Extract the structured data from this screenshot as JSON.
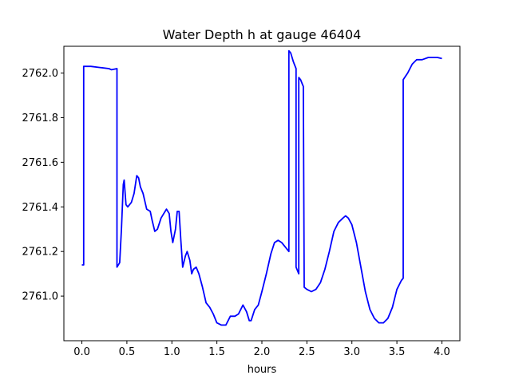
{
  "chart_data": {
    "type": "line",
    "title": "Water Depth h at gauge 46404",
    "xlabel": "hours",
    "ylabel": "",
    "xlim": [
      -0.2,
      4.2
    ],
    "ylim": [
      2760.8,
      2762.12
    ],
    "x_ticks": [
      0.0,
      0.5,
      1.0,
      1.5,
      2.0,
      2.5,
      3.0,
      3.5,
      4.0
    ],
    "x_tick_labels": [
      "0.0",
      "0.5",
      "1.0",
      "1.5",
      "2.0",
      "2.5",
      "3.0",
      "3.5",
      "4.0"
    ],
    "y_ticks": [
      2761.0,
      2761.2,
      2761.4,
      2761.6,
      2761.8,
      2762.0
    ],
    "y_tick_labels": [
      "2761.0",
      "2761.2",
      "2761.4",
      "2761.6",
      "2761.8",
      "2762.0"
    ],
    "grid": false,
    "legend": "none",
    "series": [
      {
        "color": "#0000ff",
        "points": [
          [
            0.0,
            2761.14
          ],
          [
            0.02,
            2761.14
          ],
          [
            0.02,
            2762.03
          ],
          [
            0.1,
            2762.03
          ],
          [
            0.2,
            2762.025
          ],
          [
            0.3,
            2762.02
          ],
          [
            0.33,
            2762.015
          ],
          [
            0.39,
            2762.02
          ],
          [
            0.39,
            2761.13
          ],
          [
            0.42,
            2761.15
          ],
          [
            0.44,
            2761.3
          ],
          [
            0.46,
            2761.5
          ],
          [
            0.47,
            2761.52
          ],
          [
            0.49,
            2761.41
          ],
          [
            0.51,
            2761.4
          ],
          [
            0.55,
            2761.42
          ],
          [
            0.58,
            2761.46
          ],
          [
            0.61,
            2761.54
          ],
          [
            0.63,
            2761.53
          ],
          [
            0.65,
            2761.49
          ],
          [
            0.68,
            2761.46
          ],
          [
            0.72,
            2761.39
          ],
          [
            0.76,
            2761.38
          ],
          [
            0.78,
            2761.34
          ],
          [
            0.81,
            2761.29
          ],
          [
            0.84,
            2761.3
          ],
          [
            0.88,
            2761.35
          ],
          [
            0.91,
            2761.37
          ],
          [
            0.94,
            2761.39
          ],
          [
            0.97,
            2761.37
          ],
          [
            0.99,
            2761.29
          ],
          [
            1.01,
            2761.24
          ],
          [
            1.04,
            2761.3
          ],
          [
            1.06,
            2761.38
          ],
          [
            1.08,
            2761.38
          ],
          [
            1.1,
            2761.25
          ],
          [
            1.12,
            2761.13
          ],
          [
            1.15,
            2761.18
          ],
          [
            1.17,
            2761.2
          ],
          [
            1.2,
            2761.16
          ],
          [
            1.22,
            2761.1
          ],
          [
            1.24,
            2761.12
          ],
          [
            1.27,
            2761.13
          ],
          [
            1.3,
            2761.1
          ],
          [
            1.34,
            2761.04
          ],
          [
            1.38,
            2760.97
          ],
          [
            1.42,
            2760.95
          ],
          [
            1.46,
            2760.92
          ],
          [
            1.5,
            2760.88
          ],
          [
            1.55,
            2760.87
          ],
          [
            1.6,
            2760.87
          ],
          [
            1.65,
            2760.91
          ],
          [
            1.7,
            2760.91
          ],
          [
            1.74,
            2760.92
          ],
          [
            1.79,
            2760.96
          ],
          [
            1.83,
            2760.93
          ],
          [
            1.86,
            2760.89
          ],
          [
            1.88,
            2760.89
          ],
          [
            1.92,
            2760.94
          ],
          [
            1.96,
            2760.96
          ],
          [
            2.0,
            2761.02
          ],
          [
            2.05,
            2761.1
          ],
          [
            2.1,
            2761.19
          ],
          [
            2.14,
            2761.24
          ],
          [
            2.18,
            2761.25
          ],
          [
            2.22,
            2761.24
          ],
          [
            2.26,
            2761.22
          ],
          [
            2.3,
            2761.2
          ],
          [
            2.3,
            2762.1
          ],
          [
            2.32,
            2762.09
          ],
          [
            2.35,
            2762.05
          ],
          [
            2.38,
            2762.02
          ],
          [
            2.38,
            2761.13
          ],
          [
            2.41,
            2761.1
          ],
          [
            2.41,
            2761.98
          ],
          [
            2.43,
            2761.97
          ],
          [
            2.45,
            2761.95
          ],
          [
            2.46,
            2761.94
          ],
          [
            2.47,
            2761.04
          ],
          [
            2.5,
            2761.03
          ],
          [
            2.55,
            2761.02
          ],
          [
            2.6,
            2761.03
          ],
          [
            2.65,
            2761.06
          ],
          [
            2.7,
            2761.12
          ],
          [
            2.75,
            2761.2
          ],
          [
            2.8,
            2761.29
          ],
          [
            2.85,
            2761.33
          ],
          [
            2.9,
            2761.35
          ],
          [
            2.93,
            2761.36
          ],
          [
            2.96,
            2761.35
          ],
          [
            3.0,
            2761.32
          ],
          [
            3.05,
            2761.24
          ],
          [
            3.1,
            2761.13
          ],
          [
            3.15,
            2761.02
          ],
          [
            3.2,
            2760.94
          ],
          [
            3.25,
            2760.9
          ],
          [
            3.3,
            2760.88
          ],
          [
            3.35,
            2760.88
          ],
          [
            3.4,
            2760.9
          ],
          [
            3.45,
            2760.95
          ],
          [
            3.5,
            2761.03
          ],
          [
            3.55,
            2761.07
          ],
          [
            3.57,
            2761.08
          ],
          [
            3.57,
            2761.97
          ],
          [
            3.62,
            2762.0
          ],
          [
            3.67,
            2762.04
          ],
          [
            3.72,
            2762.06
          ],
          [
            3.78,
            2762.06
          ],
          [
            3.85,
            2762.07
          ],
          [
            3.9,
            2762.07
          ],
          [
            3.95,
            2762.07
          ],
          [
            4.0,
            2762.065
          ]
        ]
      }
    ]
  }
}
